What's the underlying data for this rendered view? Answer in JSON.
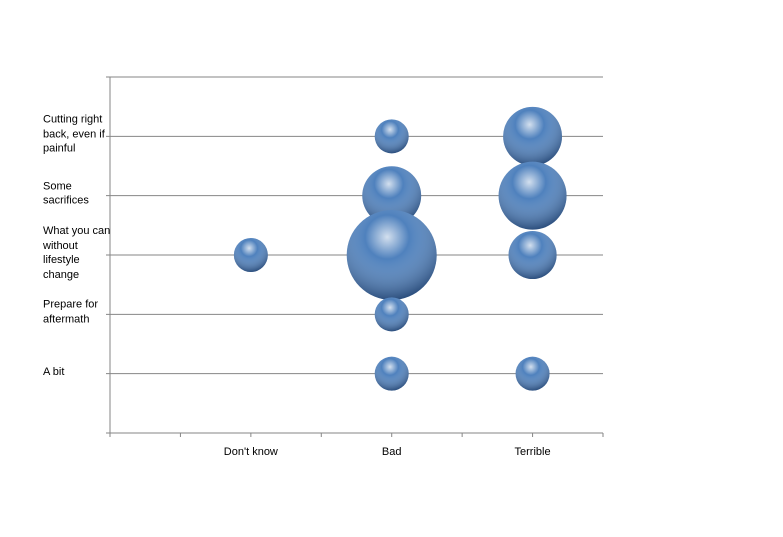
{
  "chart_data": {
    "type": "bubble",
    "xlim": [
      0,
      7
    ],
    "ylim": [
      0,
      6
    ],
    "x_minor_ticks": [
      0,
      1,
      2,
      3,
      4,
      5,
      6,
      7
    ],
    "xticks": [
      {
        "value": 2,
        "label": "Don't know"
      },
      {
        "value": 4,
        "label": "Bad"
      },
      {
        "value": 6,
        "label": "Terrible"
      }
    ],
    "y_gridlines": [
      1,
      2,
      3,
      4,
      5,
      6
    ],
    "yticks": [
      {
        "value": 1,
        "label": "A bit"
      },
      {
        "value": 2,
        "label": "Prepare for aftermath"
      },
      {
        "value": 3,
        "label": "What you can without lifestyle change"
      },
      {
        "value": 4,
        "label": "Some sacrifices"
      },
      {
        "value": 5,
        "label": "Cutting right back, even if painful"
      }
    ],
    "color": "#4f81bd",
    "x": [
      2,
      4,
      4,
      4,
      4,
      4,
      6,
      6,
      6,
      6
    ],
    "y": [
      3,
      5,
      4,
      3,
      2,
      1,
      5,
      4,
      3,
      1
    ],
    "sizes": [
      1,
      1,
      3,
      7,
      1,
      1,
      3,
      4,
      2,
      1
    ]
  }
}
